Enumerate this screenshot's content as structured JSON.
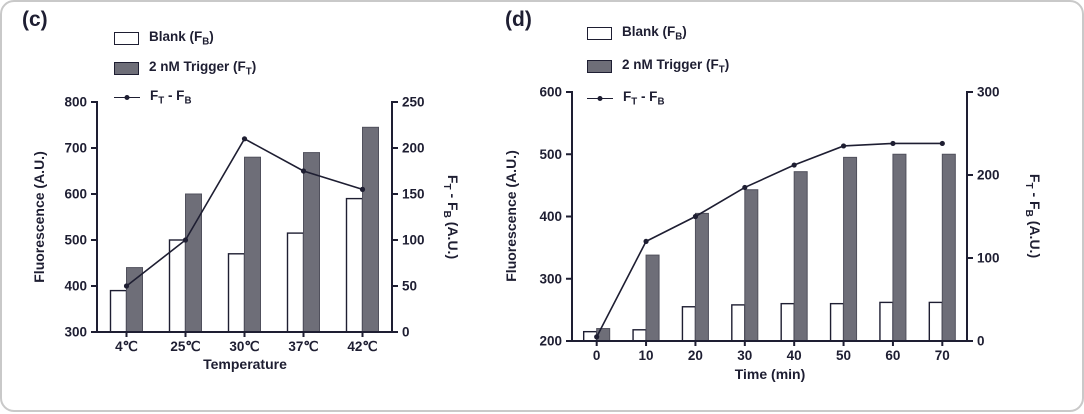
{
  "colors": {
    "background": "#ffffff",
    "figure_border": "#c9c9c9",
    "text": "#1e1e32",
    "axis": "#1e1e32",
    "bar_blank_fill": "#ffffff",
    "bar_blank_stroke": "#1e1e32",
    "bar_trigger_fill": "#6e6e78",
    "bar_trigger_stroke": "#50505c",
    "line": "#1e1e32"
  },
  "figure": {
    "panels": [
      {
        "tag": "(c)",
        "legend": {
          "blank": {
            "p1": "Blank (F",
            "s1": "B",
            "p2": ")"
          },
          "trigger": {
            "p1": "2 nM Trigger (F",
            "s1": "T",
            "p2": ")"
          },
          "diff": {
            "p1": "F",
            "s1": "T",
            "p2": " - F",
            "s2": "B"
          }
        },
        "ylabel_left": "Fluorescence (A.U.)",
        "ylabel_right": {
          "p1": "F",
          "s1": "T",
          "p2": " - F",
          "s2": "B",
          "p3": " (A.U.)"
        },
        "xlabel": "Temperature"
      },
      {
        "tag": "(d)",
        "legend": {
          "blank": {
            "p1": "Blank (F",
            "s1": "B",
            "p2": ")"
          },
          "trigger": {
            "p1": "2 nM Trigger (F",
            "s1": "T",
            "p2": ")"
          },
          "diff": {
            "p1": "F",
            "s1": "T",
            "p2": " - F",
            "s2": "B"
          }
        },
        "ylabel_left": "Fluorescence (A.U.)",
        "ylabel_right": {
          "p1": "F",
          "s1": "T",
          "p2": " - F",
          "s2": "B",
          "p3": " (A.U.)"
        },
        "xlabel": "Time (min)"
      }
    ]
  },
  "chart_data": [
    {
      "type": "bar",
      "panel": "c",
      "categories": [
        "4℃",
        "25℃",
        "30℃",
        "37℃",
        "42℃"
      ],
      "series": [
        {
          "name": "Blank (FB)",
          "axis": "left",
          "style": "white-bar",
          "values": [
            390,
            500,
            470,
            515,
            590
          ]
        },
        {
          "name": "2 nM Trigger (FT)",
          "axis": "left",
          "style": "gray-bar",
          "values": [
            440,
            600,
            680,
            690,
            745
          ]
        },
        {
          "name": "FT - FB",
          "axis": "right",
          "style": "line",
          "values": [
            50,
            100,
            210,
            175,
            155
          ]
        }
      ],
      "xlabel": "Temperature",
      "ylabel_left": "Fluorescence (A.U.)",
      "ylabel_right": "FT - FB (A.U.)",
      "ylim_left": [
        300,
        800
      ],
      "yticks_left": [
        300,
        400,
        500,
        600,
        700,
        800
      ],
      "ylim_right": [
        0,
        250
      ],
      "yticks_right": [
        0,
        50,
        100,
        150,
        200,
        250
      ],
      "grid": false,
      "legend_position": "top-left"
    },
    {
      "type": "bar",
      "panel": "d",
      "categories": [
        "0",
        "10",
        "20",
        "30",
        "40",
        "50",
        "60",
        "70"
      ],
      "series": [
        {
          "name": "Blank (FB)",
          "axis": "left",
          "style": "white-bar",
          "values": [
            215,
            218,
            255,
            258,
            260,
            260,
            262,
            262
          ]
        },
        {
          "name": "2 nM Trigger (FT)",
          "axis": "left",
          "style": "gray-bar",
          "values": [
            220,
            338,
            405,
            443,
            472,
            495,
            500,
            500
          ]
        },
        {
          "name": "FT - FB",
          "axis": "right",
          "style": "line",
          "values": [
            5,
            120,
            150,
            185,
            212,
            235,
            238,
            238
          ]
        }
      ],
      "xlabel": "Time (min)",
      "ylabel_left": "Fluorescence (A.U.)",
      "ylabel_right": "FT - FB (A.U.)",
      "ylim_left": [
        200,
        600
      ],
      "yticks_left": [
        200,
        300,
        400,
        500,
        600
      ],
      "ylim_right": [
        0,
        300
      ],
      "yticks_right": [
        0,
        100,
        200,
        300
      ],
      "grid": false,
      "legend_position": "top-left"
    }
  ]
}
